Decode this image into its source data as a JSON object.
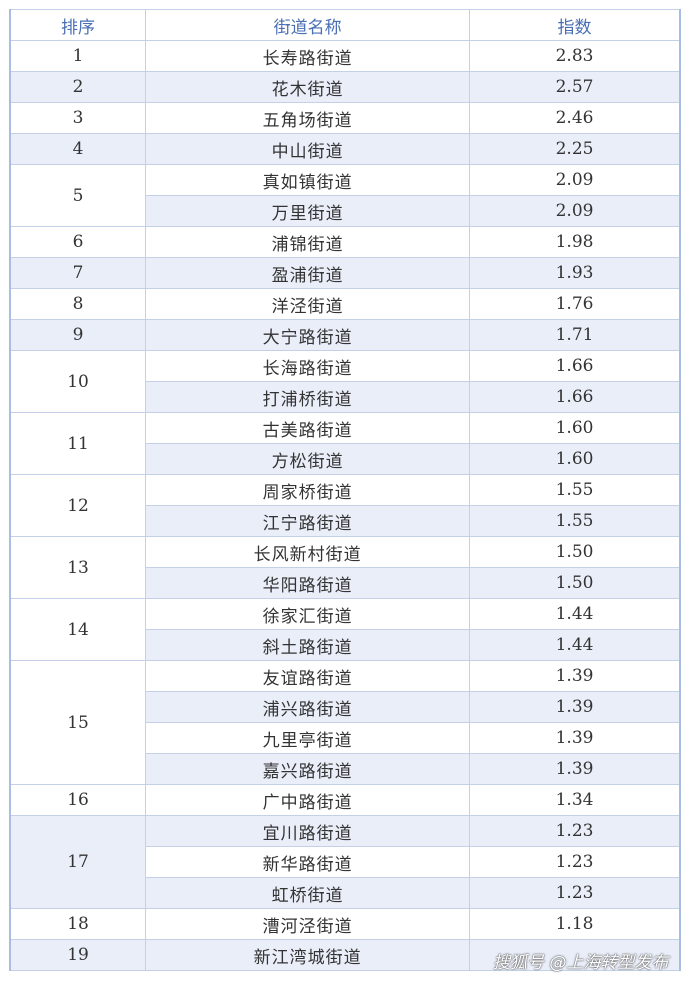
{
  "header": {
    "rank": "排序",
    "name": "街道名称",
    "index": "指数"
  },
  "groups": [
    {
      "rank": "1",
      "rows": [
        {
          "name": "长寿路街道",
          "value": "2.83"
        }
      ]
    },
    {
      "rank": "2",
      "rows": [
        {
          "name": "花木街道",
          "value": "2.57"
        }
      ]
    },
    {
      "rank": "3",
      "rows": [
        {
          "name": "五角场街道",
          "value": "2.46"
        }
      ]
    },
    {
      "rank": "4",
      "rows": [
        {
          "name": "中山街道",
          "value": "2.25"
        }
      ]
    },
    {
      "rank": "5",
      "rows": [
        {
          "name": "真如镇街道",
          "value": "2.09"
        },
        {
          "name": "万里街道",
          "value": "2.09"
        }
      ]
    },
    {
      "rank": "6",
      "rows": [
        {
          "name": "浦锦街道",
          "value": "1.98"
        }
      ]
    },
    {
      "rank": "7",
      "rows": [
        {
          "name": "盈浦街道",
          "value": "1.93"
        }
      ]
    },
    {
      "rank": "8",
      "rows": [
        {
          "name": "洋泾街道",
          "value": "1.76"
        }
      ]
    },
    {
      "rank": "9",
      "rows": [
        {
          "name": "大宁路街道",
          "value": "1.71"
        }
      ]
    },
    {
      "rank": "10",
      "rows": [
        {
          "name": "长海路街道",
          "value": "1.66"
        },
        {
          "name": "打浦桥街道",
          "value": "1.66"
        }
      ]
    },
    {
      "rank": "11",
      "rows": [
        {
          "name": "古美路街道",
          "value": "1.60"
        },
        {
          "name": "方松街道",
          "value": "1.60"
        }
      ]
    },
    {
      "rank": "12",
      "rows": [
        {
          "name": "周家桥街道",
          "value": "1.55"
        },
        {
          "name": "江宁路街道",
          "value": "1.55"
        }
      ]
    },
    {
      "rank": "13",
      "rows": [
        {
          "name": "长风新村街道",
          "value": "1.50"
        },
        {
          "name": "华阳路街道",
          "value": "1.50"
        }
      ]
    },
    {
      "rank": "14",
      "rows": [
        {
          "name": "徐家汇街道",
          "value": "1.44"
        },
        {
          "name": "斜土路街道",
          "value": "1.44"
        }
      ]
    },
    {
      "rank": "15",
      "rows": [
        {
          "name": "友谊路街道",
          "value": "1.39"
        },
        {
          "name": "浦兴路街道",
          "value": "1.39"
        },
        {
          "name": "九里亭街道",
          "value": "1.39"
        },
        {
          "name": "嘉兴路街道",
          "value": "1.39"
        }
      ]
    },
    {
      "rank": "16",
      "rows": [
        {
          "name": "广中路街道",
          "value": "1.34"
        }
      ]
    },
    {
      "rank": "17",
      "rows": [
        {
          "name": "宜川路街道",
          "value": "1.23"
        },
        {
          "name": "新华路街道",
          "value": "1.23"
        },
        {
          "name": "虹桥街道",
          "value": "1.23"
        }
      ]
    },
    {
      "rank": "18",
      "rows": [
        {
          "name": "漕河泾街道",
          "value": "1.18"
        }
      ]
    },
    {
      "rank": "19",
      "rows": [
        {
          "name": "新江湾城街道",
          "value": ""
        }
      ]
    }
  ],
  "watermark": "搜狐号 @上海转型发布"
}
